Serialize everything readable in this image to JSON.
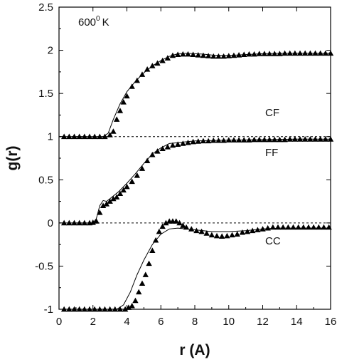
{
  "chart_data": {
    "type": "scatter",
    "xlabel": "r (A)",
    "ylabel": "g(r)",
    "xlim": [
      0,
      16
    ],
    "ylim": [
      -1,
      2.5
    ],
    "x_ticks": [
      "0",
      "2",
      "4",
      "6",
      "8",
      "10",
      "12",
      "14",
      "16"
    ],
    "y_ticks": [
      "-1",
      "-0.5",
      "0",
      "0.5",
      "1",
      "1.5",
      "2",
      "2.5"
    ],
    "annotations": {
      "temperature": "600",
      "temperature_sup": "0",
      "temperature_unit": "K",
      "cf": "CF",
      "ff": "FF",
      "cc": "CC"
    },
    "baselines": [
      0,
      1
    ],
    "series": [
      {
        "offset": 1,
        "line": [
          [
            0,
            1.0
          ],
          [
            2.6,
            1.0
          ],
          [
            2.9,
            1.04
          ],
          [
            3.2,
            1.2
          ],
          [
            3.6,
            1.38
          ],
          [
            4.0,
            1.52
          ],
          [
            4.5,
            1.64
          ],
          [
            5.0,
            1.74
          ],
          [
            5.5,
            1.82
          ],
          [
            6.0,
            1.88
          ],
          [
            6.5,
            1.93
          ],
          [
            7.0,
            1.96
          ],
          [
            7.5,
            1.965
          ],
          [
            8.0,
            1.96
          ],
          [
            8.5,
            1.955
          ],
          [
            9.0,
            1.945
          ],
          [
            9.5,
            1.94
          ],
          [
            10.0,
            1.94
          ],
          [
            10.5,
            1.945
          ],
          [
            11.0,
            1.95
          ],
          [
            12.0,
            1.96
          ],
          [
            13.0,
            1.965
          ],
          [
            14.0,
            1.965
          ],
          [
            15.0,
            1.965
          ],
          [
            16.0,
            1.965
          ]
        ],
        "points": [
          [
            0.3,
            1.0
          ],
          [
            0.6,
            1.0
          ],
          [
            0.9,
            1.0
          ],
          [
            1.2,
            1.0
          ],
          [
            1.5,
            1.0
          ],
          [
            1.8,
            1.0
          ],
          [
            2.1,
            1.0
          ],
          [
            2.4,
            1.0
          ],
          [
            2.7,
            1.0
          ],
          [
            3.0,
            1.02
          ],
          [
            3.2,
            1.06
          ],
          [
            3.4,
            1.2
          ],
          [
            3.6,
            1.3
          ],
          [
            3.8,
            1.4
          ],
          [
            4.0,
            1.47
          ],
          [
            4.3,
            1.58
          ],
          [
            4.6,
            1.65
          ],
          [
            4.9,
            1.72
          ],
          [
            5.2,
            1.78
          ],
          [
            5.5,
            1.82
          ],
          [
            5.8,
            1.85
          ],
          [
            6.1,
            1.88
          ],
          [
            6.4,
            1.91
          ],
          [
            6.7,
            1.94
          ],
          [
            7.0,
            1.95
          ],
          [
            7.3,
            1.955
          ],
          [
            7.6,
            1.955
          ],
          [
            7.9,
            1.95
          ],
          [
            8.2,
            1.945
          ],
          [
            8.5,
            1.94
          ],
          [
            8.8,
            1.935
          ],
          [
            9.1,
            1.93
          ],
          [
            9.4,
            1.93
          ],
          [
            9.7,
            1.93
          ],
          [
            10.0,
            1.935
          ],
          [
            10.3,
            1.94
          ],
          [
            10.6,
            1.945
          ],
          [
            10.9,
            1.95
          ],
          [
            11.2,
            1.955
          ],
          [
            11.5,
            1.955
          ],
          [
            11.8,
            1.96
          ],
          [
            12.1,
            1.96
          ],
          [
            12.4,
            1.96
          ],
          [
            12.7,
            1.96
          ],
          [
            13.0,
            1.96
          ],
          [
            13.3,
            1.965
          ],
          [
            13.6,
            1.965
          ],
          [
            13.9,
            1.965
          ],
          [
            14.2,
            1.965
          ],
          [
            14.5,
            1.965
          ],
          [
            14.8,
            1.965
          ],
          [
            15.1,
            1.965
          ],
          [
            15.4,
            1.965
          ],
          [
            15.7,
            1.965
          ],
          [
            16.0,
            1.965
          ]
        ]
      },
      {
        "offset": 0,
        "line": [
          [
            0,
            0.0
          ],
          [
            2.0,
            0.0
          ],
          [
            2.2,
            0.05
          ],
          [
            2.4,
            0.2
          ],
          [
            2.6,
            0.26
          ],
          [
            2.8,
            0.25
          ],
          [
            3.0,
            0.28
          ],
          [
            3.5,
            0.36
          ],
          [
            4.0,
            0.46
          ],
          [
            4.5,
            0.57
          ],
          [
            5.0,
            0.69
          ],
          [
            5.5,
            0.8
          ],
          [
            6.0,
            0.87
          ],
          [
            6.5,
            0.92
          ],
          [
            7.0,
            0.93
          ],
          [
            8.0,
            0.95
          ],
          [
            9.0,
            0.955
          ],
          [
            10.0,
            0.96
          ],
          [
            12.0,
            0.965
          ],
          [
            14.0,
            0.97
          ],
          [
            16.0,
            0.97
          ]
        ],
        "points": [
          [
            0.3,
            0.0
          ],
          [
            0.6,
            0.0
          ],
          [
            0.9,
            0.0
          ],
          [
            1.2,
            0.0
          ],
          [
            1.5,
            0.0
          ],
          [
            1.8,
            0.0
          ],
          [
            2.0,
            0.005
          ],
          [
            2.2,
            0.02
          ],
          [
            2.4,
            0.12
          ],
          [
            2.6,
            0.2
          ],
          [
            2.8,
            0.22
          ],
          [
            3.0,
            0.25
          ],
          [
            3.2,
            0.28
          ],
          [
            3.4,
            0.3
          ],
          [
            3.6,
            0.34
          ],
          [
            3.8,
            0.38
          ],
          [
            4.0,
            0.42
          ],
          [
            4.3,
            0.48
          ],
          [
            4.6,
            0.55
          ],
          [
            4.9,
            0.63
          ],
          [
            5.2,
            0.72
          ],
          [
            5.5,
            0.79
          ],
          [
            5.8,
            0.83
          ],
          [
            6.1,
            0.86
          ],
          [
            6.4,
            0.88
          ],
          [
            6.7,
            0.9
          ],
          [
            7.0,
            0.91
          ],
          [
            7.3,
            0.92
          ],
          [
            7.6,
            0.93
          ],
          [
            7.9,
            0.94
          ],
          [
            8.2,
            0.945
          ],
          [
            8.5,
            0.95
          ],
          [
            8.8,
            0.95
          ],
          [
            9.1,
            0.955
          ],
          [
            9.4,
            0.955
          ],
          [
            9.7,
            0.955
          ],
          [
            10.0,
            0.96
          ],
          [
            10.3,
            0.96
          ],
          [
            10.6,
            0.96
          ],
          [
            10.9,
            0.96
          ],
          [
            11.2,
            0.96
          ],
          [
            11.5,
            0.965
          ],
          [
            11.8,
            0.965
          ],
          [
            12.1,
            0.965
          ],
          [
            12.4,
            0.965
          ],
          [
            12.7,
            0.965
          ],
          [
            13.0,
            0.965
          ],
          [
            13.3,
            0.965
          ],
          [
            13.6,
            0.97
          ],
          [
            13.9,
            0.97
          ],
          [
            14.2,
            0.97
          ],
          [
            14.5,
            0.97
          ],
          [
            14.8,
            0.97
          ],
          [
            15.1,
            0.97
          ],
          [
            15.4,
            0.97
          ],
          [
            15.7,
            0.97
          ],
          [
            16.0,
            0.97
          ]
        ]
      },
      {
        "offset": -1,
        "line": [
          [
            0,
            -1.0
          ],
          [
            3.4,
            -1.0
          ],
          [
            3.8,
            -0.95
          ],
          [
            4.2,
            -0.8
          ],
          [
            4.6,
            -0.6
          ],
          [
            5.0,
            -0.43
          ],
          [
            5.5,
            -0.25
          ],
          [
            6.0,
            -0.13
          ],
          [
            6.5,
            -0.07
          ],
          [
            7.0,
            -0.06
          ],
          [
            7.5,
            -0.07
          ],
          [
            8.0,
            -0.08
          ],
          [
            9.0,
            -0.1
          ],
          [
            10.0,
            -0.1
          ],
          [
            11.0,
            -0.09
          ],
          [
            12.0,
            -0.07
          ],
          [
            13.0,
            -0.06
          ],
          [
            14.0,
            -0.06
          ],
          [
            16.0,
            -0.06
          ]
        ],
        "points": [
          [
            0.3,
            -1.0
          ],
          [
            0.6,
            -1.0
          ],
          [
            0.9,
            -1.0
          ],
          [
            1.2,
            -1.0
          ],
          [
            1.5,
            -1.0
          ],
          [
            1.8,
            -1.0
          ],
          [
            2.1,
            -1.0
          ],
          [
            2.4,
            -1.0
          ],
          [
            2.7,
            -1.0
          ],
          [
            3.0,
            -1.0
          ],
          [
            3.3,
            -1.0
          ],
          [
            3.6,
            -1.0
          ],
          [
            3.9,
            -1.0
          ],
          [
            4.1,
            -0.98
          ],
          [
            4.3,
            -0.96
          ],
          [
            4.5,
            -0.9
          ],
          [
            4.7,
            -0.8
          ],
          [
            4.9,
            -0.7
          ],
          [
            5.1,
            -0.6
          ],
          [
            5.3,
            -0.47
          ],
          [
            5.5,
            -0.32
          ],
          [
            5.7,
            -0.2
          ],
          [
            5.9,
            -0.1
          ],
          [
            6.1,
            -0.04
          ],
          [
            6.3,
            0.0
          ],
          [
            6.5,
            0.02
          ],
          [
            6.7,
            0.02
          ],
          [
            6.9,
            0.02
          ],
          [
            7.1,
            0.0
          ],
          [
            7.3,
            -0.03
          ],
          [
            7.5,
            -0.05
          ],
          [
            7.8,
            -0.07
          ],
          [
            8.1,
            -0.09
          ],
          [
            8.4,
            -0.1
          ],
          [
            8.7,
            -0.12
          ],
          [
            9.0,
            -0.14
          ],
          [
            9.3,
            -0.15
          ],
          [
            9.6,
            -0.155
          ],
          [
            9.9,
            -0.15
          ],
          [
            10.2,
            -0.14
          ],
          [
            10.5,
            -0.13
          ],
          [
            10.8,
            -0.11
          ],
          [
            11.1,
            -0.1
          ],
          [
            11.4,
            -0.09
          ],
          [
            11.7,
            -0.08
          ],
          [
            12.0,
            -0.07
          ],
          [
            12.3,
            -0.06
          ],
          [
            12.6,
            -0.05
          ],
          [
            12.9,
            -0.05
          ],
          [
            13.2,
            -0.05
          ],
          [
            13.5,
            -0.05
          ],
          [
            13.8,
            -0.05
          ],
          [
            14.1,
            -0.05
          ],
          [
            14.4,
            -0.05
          ],
          [
            14.7,
            -0.05
          ],
          [
            15.0,
            -0.05
          ],
          [
            15.3,
            -0.05
          ],
          [
            15.6,
            -0.05
          ],
          [
            15.9,
            -0.05
          ]
        ]
      }
    ]
  }
}
